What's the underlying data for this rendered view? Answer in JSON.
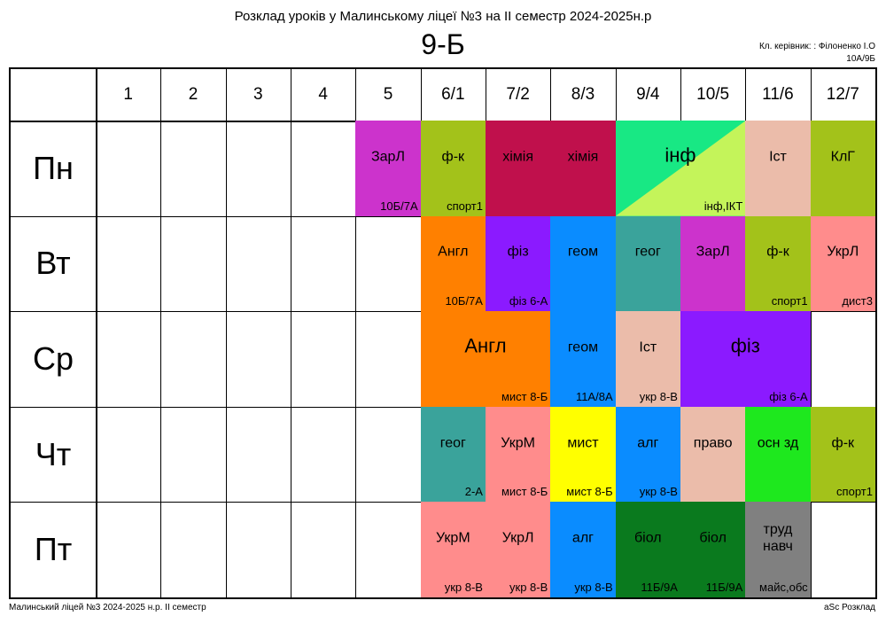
{
  "header": {
    "title": "Розклад уроків у Малинському ліцеї №3 на II семестр 2024-2025н.р",
    "class_name": "9-Б",
    "teacher_line1": "Кл. керівник: : Філоненко І.О",
    "teacher_line2": "10А/9Б"
  },
  "footer": {
    "left": "Малинський ліцей №3  2024-2025 н.р. II семестр",
    "right": "aSc Розклад"
  },
  "periods": [
    "1",
    "2",
    "3",
    "4",
    "5",
    "6/1",
    "7/2",
    "8/3",
    "9/4",
    "10/5",
    "11/6",
    "12/7"
  ],
  "days": [
    "Пн",
    "Вт",
    "Ср",
    "Чт",
    "Пт"
  ],
  "lessons": [
    {
      "day": 0,
      "col": 4,
      "span": 1,
      "subject": "ЗарЛ",
      "room": "10Б/7А",
      "color": "#cc33cc"
    },
    {
      "day": 0,
      "col": 5,
      "span": 1,
      "subject": "ф-к",
      "room": "спорт1",
      "color": "#a3c21a"
    },
    {
      "day": 0,
      "col": 6,
      "span": 1,
      "subject": "хімія",
      "room": "",
      "color": "#c0104c"
    },
    {
      "day": 0,
      "col": 7,
      "span": 1,
      "subject": "хімія",
      "room": "",
      "color": "#c0104c"
    },
    {
      "day": 0,
      "col": 8,
      "span": 2,
      "subject": "інф",
      "room": "інф,ІКТ",
      "color": "#18e884",
      "color2": "#c4f45a",
      "big": true
    },
    {
      "day": 0,
      "col": 10,
      "span": 1,
      "subject": "Іст",
      "room": "",
      "color": "#ebbcaa"
    },
    {
      "day": 0,
      "col": 11,
      "span": 1,
      "subject": "КлГ",
      "room": "",
      "color": "#a3c21a"
    },
    {
      "day": 1,
      "col": 5,
      "span": 1,
      "subject": "Англ",
      "room": "10Б/7А",
      "color": "#ff8000"
    },
    {
      "day": 1,
      "col": 6,
      "span": 1,
      "subject": "фіз",
      "room": "фіз 6-А",
      "color": "#8b1aff"
    },
    {
      "day": 1,
      "col": 7,
      "span": 1,
      "subject": "геом",
      "room": "",
      "color": "#0a8cff"
    },
    {
      "day": 1,
      "col": 8,
      "span": 1,
      "subject": "геог",
      "room": "",
      "color": "#3aa39b"
    },
    {
      "day": 1,
      "col": 9,
      "span": 1,
      "subject": "ЗарЛ",
      "room": "",
      "color": "#cc33cc"
    },
    {
      "day": 1,
      "col": 10,
      "span": 1,
      "subject": "ф-к",
      "room": "спорт1",
      "color": "#a3c21a"
    },
    {
      "day": 1,
      "col": 11,
      "span": 1,
      "subject": "УкрЛ",
      "room": "дист3",
      "color": "#ff8c8c"
    },
    {
      "day": 2,
      "col": 5,
      "span": 2,
      "subject": "Англ",
      "room": "мист 8-Б",
      "color": "#ff8000",
      "big": true
    },
    {
      "day": 2,
      "col": 7,
      "span": 1,
      "subject": "геом",
      "room": "11А/8А",
      "color": "#0a8cff"
    },
    {
      "day": 2,
      "col": 8,
      "span": 1,
      "subject": "Іст",
      "room": "укр 8-В",
      "color": "#ebbcaa"
    },
    {
      "day": 2,
      "col": 9,
      "span": 2,
      "subject": "фіз",
      "room": "фіз 6-А",
      "color": "#8b1aff",
      "big": true
    },
    {
      "day": 3,
      "col": 5,
      "span": 1,
      "subject": "геог",
      "room": "2-А",
      "color": "#3aa39b"
    },
    {
      "day": 3,
      "col": 6,
      "span": 1,
      "subject": "УкрМ",
      "room": "мист 8-Б",
      "color": "#ff8c8c"
    },
    {
      "day": 3,
      "col": 7,
      "span": 1,
      "subject": "мист",
      "room": "мист 8-Б",
      "color": "#ffff00"
    },
    {
      "day": 3,
      "col": 8,
      "span": 1,
      "subject": "алг",
      "room": "укр 8-В",
      "color": "#0a8cff"
    },
    {
      "day": 3,
      "col": 9,
      "span": 1,
      "subject": "право",
      "room": "",
      "color": "#ebbcaa"
    },
    {
      "day": 3,
      "col": 10,
      "span": 1,
      "subject": "осн зд",
      "room": "",
      "color": "#1ee81e"
    },
    {
      "day": 3,
      "col": 11,
      "span": 1,
      "subject": "ф-к",
      "room": "спорт1",
      "color": "#a3c21a"
    },
    {
      "day": 4,
      "col": 5,
      "span": 1,
      "subject": "УкрМ",
      "room": "укр 8-В",
      "color": "#ff8c8c"
    },
    {
      "day": 4,
      "col": 6,
      "span": 1,
      "subject": "УкрЛ",
      "room": "укр 8-В",
      "color": "#ff8c8c"
    },
    {
      "day": 4,
      "col": 7,
      "span": 1,
      "subject": "алг",
      "room": "укр 8-В",
      "color": "#0a8cff"
    },
    {
      "day": 4,
      "col": 8,
      "span": 1,
      "subject": "біол",
      "room": "11Б/9А",
      "color": "#0a7a1e"
    },
    {
      "day": 4,
      "col": 9,
      "span": 1,
      "subject": "біол",
      "room": "11Б/9А",
      "color": "#0a7a1e"
    },
    {
      "day": 4,
      "col": 10,
      "span": 1,
      "subject": "труд\nнавч",
      "room": "майс,обс",
      "color": "#808080"
    }
  ]
}
